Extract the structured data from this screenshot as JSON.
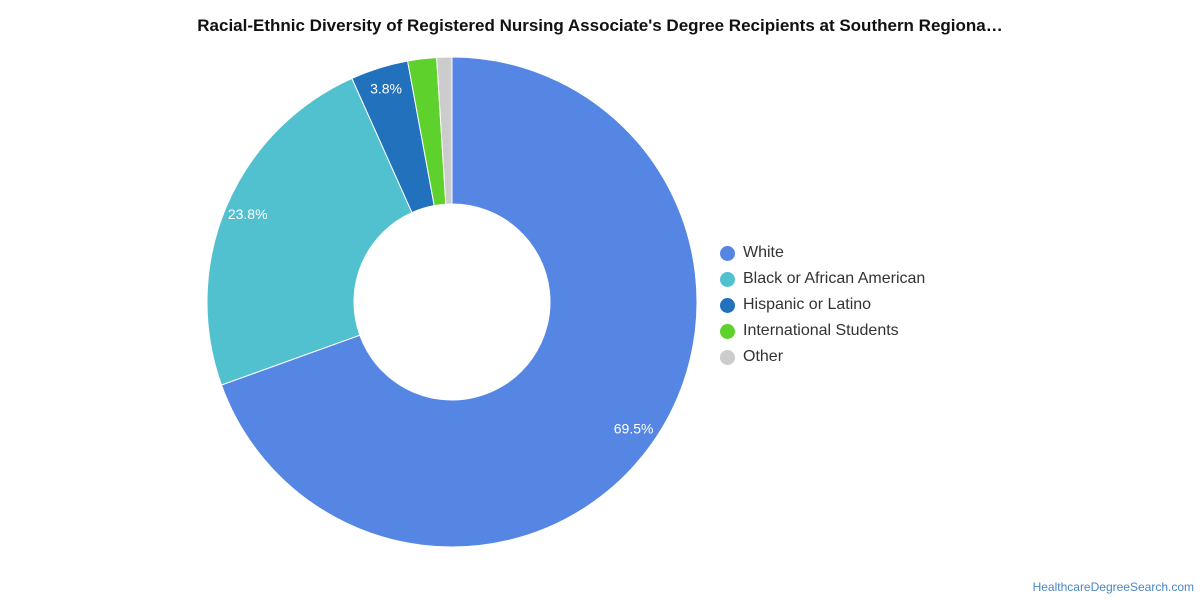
{
  "title": "Racial-Ethnic Diversity of Registered Nursing Associate's Degree Recipients at Southern Regiona…",
  "credit": "HealthcareDegreeSearch.com",
  "chart_data": {
    "type": "pie",
    "donut": true,
    "title": "Racial-Ethnic Diversity of Registered Nursing Associate's Degree Recipients at Southern Regiona…",
    "legend_position": "right",
    "slices": [
      {
        "name": "White",
        "value": 69.5,
        "label": "69.5%",
        "color": "#5586e3"
      },
      {
        "name": "Black or African American",
        "value": 23.8,
        "label": "23.8%",
        "color": "#52c1cf"
      },
      {
        "name": "Hispanic or Latino",
        "value": 3.8,
        "label": "3.8%",
        "color": "#2271bd"
      },
      {
        "name": "International Students",
        "value": 1.9,
        "label": "",
        "color": "#5fd12c"
      },
      {
        "name": "Other",
        "value": 1.0,
        "label": "",
        "color": "#cccccc"
      }
    ]
  }
}
